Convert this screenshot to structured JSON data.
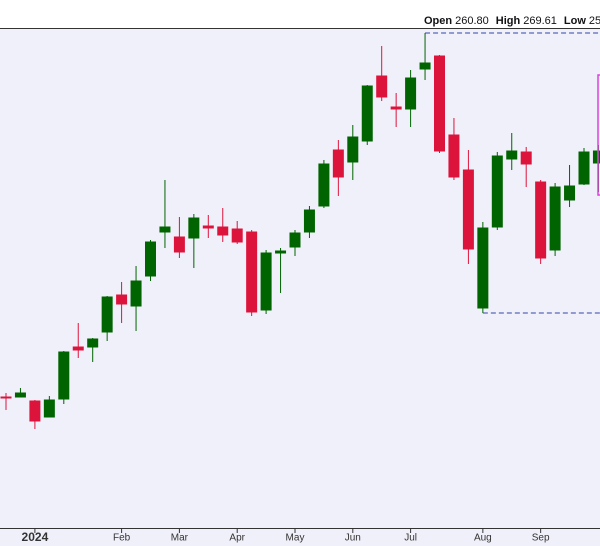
{
  "chart_data": {
    "type": "candlestick",
    "legend_items": [
      {
        "label": "Open",
        "value": "260.80"
      },
      {
        "label": "High",
        "value": "269.61"
      },
      {
        "label": "Low",
        "value": "25"
      }
    ],
    "categories": [
      null,
      null,
      "2024",
      null,
      null,
      null,
      null,
      null,
      "Feb",
      null,
      null,
      null,
      "Mar",
      null,
      null,
      null,
      "Apr",
      null,
      null,
      null,
      "May",
      null,
      null,
      null,
      "Jun",
      null,
      null,
      null,
      "Jul",
      null,
      null,
      null,
      null,
      "Aug",
      null,
      null,
      null,
      "Sep",
      null,
      null,
      null,
      null
    ],
    "open": [
      101.5,
      101.5,
      99.5,
      91.5,
      100.5,
      126.5,
      126.5,
      134,
      152.5,
      147,
      162,
      184,
      181.5,
      181,
      187,
      186.5,
      185.5,
      184,
      145,
      173.5,
      176.5,
      184,
      197,
      225,
      219,
      229.5,
      262,
      246.5,
      245.5,
      265.5,
      272,
      232.5,
      215,
      146,
      186.5,
      220.5,
      224,
      209,
      175,
      200,
      208,
      218.5
    ],
    "high": [
      103.5,
      106,
      100,
      102,
      124.5,
      138.5,
      131,
      152,
      159,
      167,
      180,
      210,
      191.5,
      193,
      192.5,
      196,
      189.5,
      185,
      175,
      176,
      185,
      197,
      220,
      230,
      237.5,
      257.5,
      277,
      253.5,
      265,
      283.5,
      272.5,
      241,
      225,
      189,
      224,
      233.5,
      226.5,
      210,
      208.5,
      217.5,
      226,
      227.5
    ],
    "low": [
      95,
      101.5,
      85.5,
      91.5,
      98,
      121,
      119,
      129.5,
      138.5,
      134.5,
      159.5,
      176,
      171,
      166,
      181,
      179,
      178,
      142,
      143,
      153.5,
      172,
      181,
      196,
      202,
      210,
      227.5,
      249.5,
      236.5,
      236.5,
      260,
      223.5,
      210,
      168,
      143.5,
      185,
      215,
      206.5,
      168,
      172,
      196.5,
      207.5,
      204
    ],
    "close": [
      101,
      103.5,
      89.5,
      100,
      124,
      125,
      130.5,
      151.5,
      148,
      159.5,
      179,
      186.5,
      174,
      191,
      186,
      182.5,
      179,
      144,
      173.5,
      174.5,
      183.5,
      195,
      218,
      211.5,
      231.5,
      257,
      251.5,
      245.5,
      261,
      268.5,
      224.5,
      211.5,
      175.5,
      186,
      222,
      224.5,
      218,
      171,
      206.5,
      207,
      224,
      224.5
    ],
    "up_color": "#006400",
    "down_color": "#dc143c",
    "reference_lines": [
      283.5,
      143.5
    ],
    "reference_color": "#3344aa",
    "highlight_box": [
      262.5,
      202.5
    ],
    "highlight_color": "#e040e0",
    "ylim": [
      36,
      286
    ]
  }
}
